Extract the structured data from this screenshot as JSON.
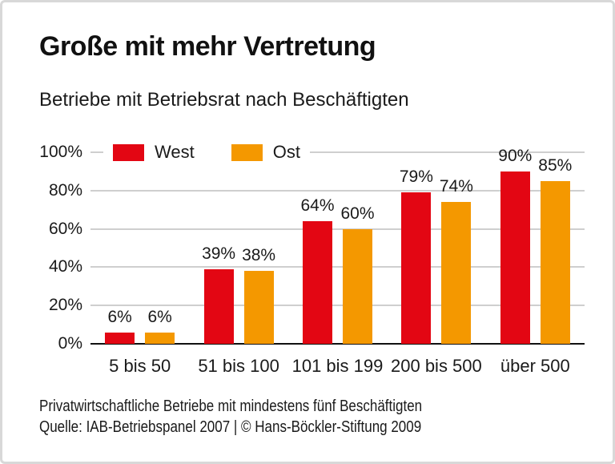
{
  "header": {
    "title": "Große mit mehr Vertretung",
    "subtitle": "Betriebe mit Betriebsrat nach Beschäftigten"
  },
  "chart_data": {
    "type": "bar",
    "categories": [
      "5 bis 50",
      "51 bis 100",
      "101 bis 199",
      "200 bis 500",
      "über 500"
    ],
    "series": [
      {
        "name": "West",
        "color": "#e30613",
        "values": [
          6,
          39,
          64,
          79,
          90
        ]
      },
      {
        "name": "Ost",
        "color": "#f49800",
        "values": [
          6,
          38,
          60,
          74,
          85
        ]
      }
    ],
    "value_suffix": "%",
    "yticks": [
      0,
      20,
      40,
      60,
      80,
      100
    ],
    "ytick_suffix": "%",
    "ylim": [
      0,
      100
    ],
    "grid": true,
    "legend_position": "top-left",
    "colors": {
      "gridline": "#cfcfcf",
      "axis": "#111111",
      "west": "#e30613",
      "ost": "#f49800"
    }
  },
  "footer": {
    "note": "Privatwirtschaftliche Betriebe mit mindestens fünf Beschäftigten",
    "source": "Quelle: IAB-Betriebspanel 2007 | © Hans-Böckler-Stiftung 2009"
  }
}
